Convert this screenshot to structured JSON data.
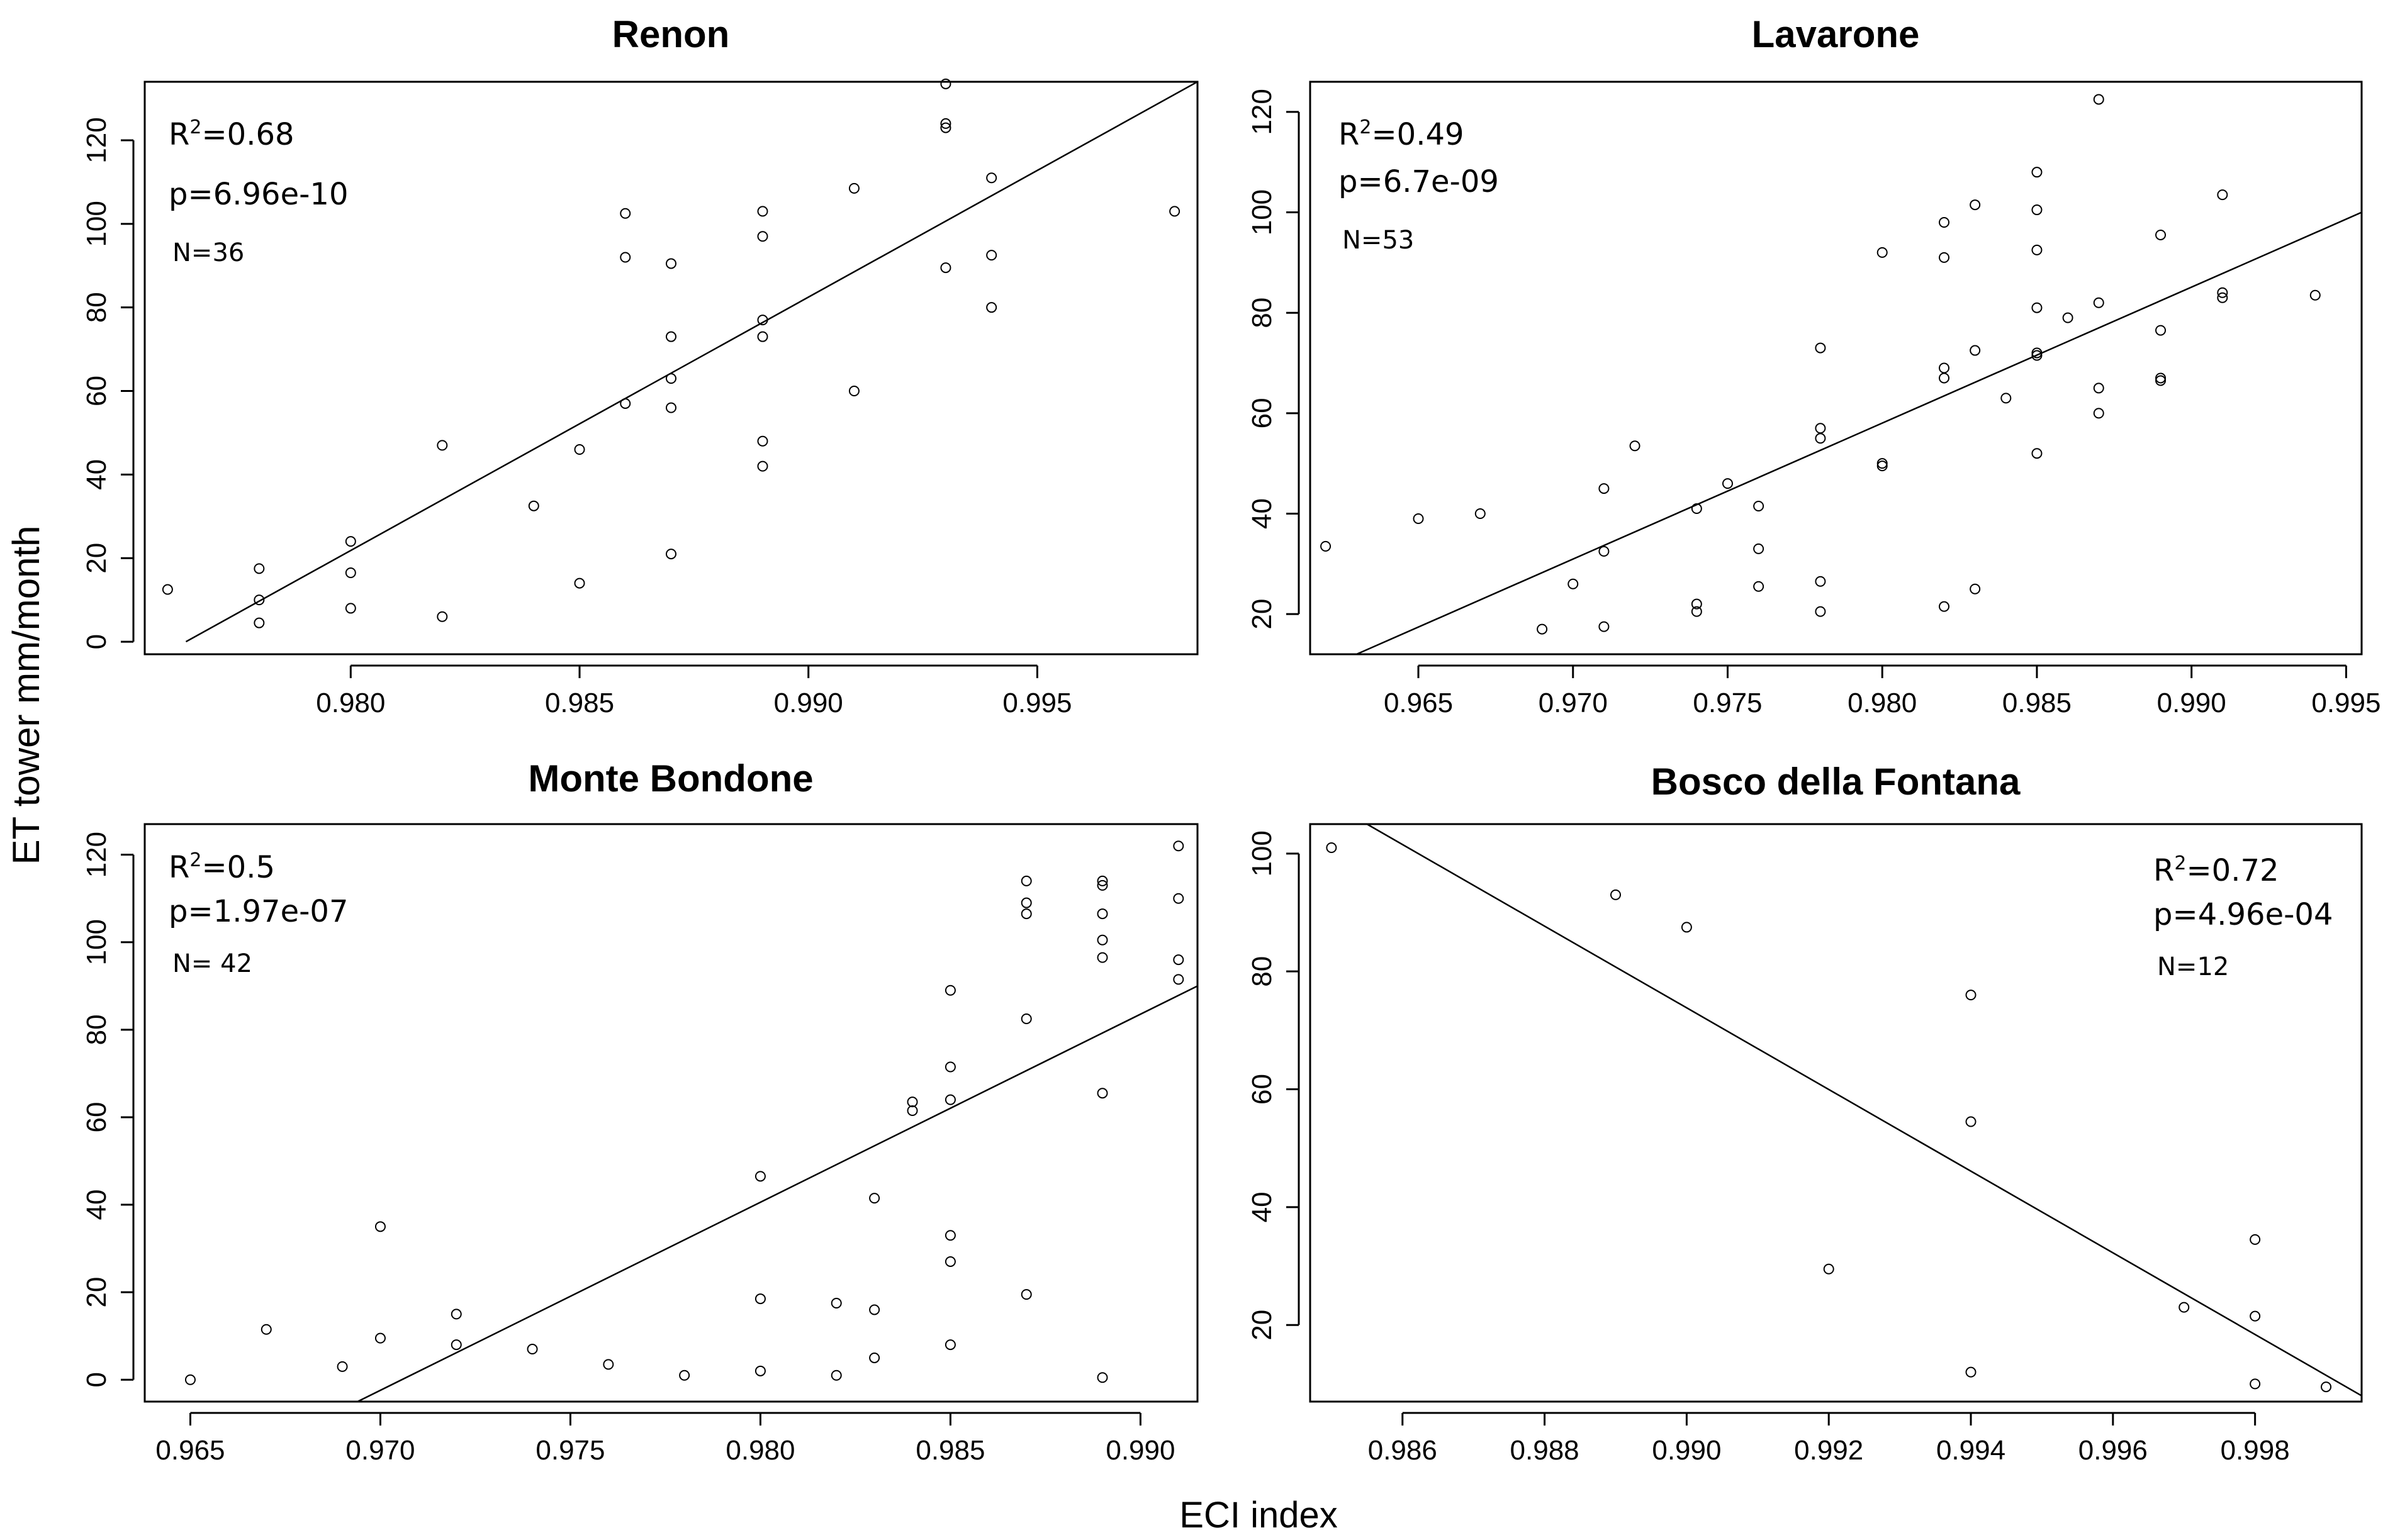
{
  "figure": {
    "ylabel": "ET tower mm/month",
    "xlabel": "ECI index"
  },
  "chart_data": [
    {
      "type": "scatter",
      "title": "Renon",
      "xlim": [
        0.9755,
        0.9985
      ],
      "ylim": [
        -3,
        134
      ],
      "xticks": [
        0.98,
        0.985,
        0.99,
        0.995
      ],
      "xtick_labels": [
        "0.980",
        "0.985",
        "0.990",
        "0.995"
      ],
      "yticks": [
        0,
        20,
        40,
        60,
        80,
        100,
        120
      ],
      "ytick_labels": [
        "0",
        "20",
        "40",
        "60",
        "80",
        "100",
        "120"
      ],
      "stats": {
        "r2_prefix": "R",
        "r2_sup": "2",
        "r2_value": "=0.68",
        "p": "p=6.96e-10",
        "n": "N=36"
      },
      "stats_position": "top-left",
      "fit_line": [
        [
          0.9764,
          0
        ],
        [
          0.9985,
          134
        ]
      ],
      "points": [
        [
          0.976,
          12.5
        ],
        [
          0.978,
          17.5
        ],
        [
          0.978,
          10
        ],
        [
          0.978,
          4.5
        ],
        [
          0.98,
          24
        ],
        [
          0.98,
          16.5
        ],
        [
          0.98,
          8
        ],
        [
          0.982,
          47
        ],
        [
          0.982,
          6
        ],
        [
          0.984,
          32.5
        ],
        [
          0.985,
          46
        ],
        [
          0.985,
          14
        ],
        [
          0.986,
          102.5
        ],
        [
          0.986,
          92
        ],
        [
          0.986,
          57
        ],
        [
          0.987,
          90.5
        ],
        [
          0.987,
          73
        ],
        [
          0.987,
          63
        ],
        [
          0.987,
          56
        ],
        [
          0.987,
          21
        ],
        [
          0.989,
          103
        ],
        [
          0.989,
          97
        ],
        [
          0.989,
          77
        ],
        [
          0.989,
          73
        ],
        [
          0.989,
          48
        ],
        [
          0.989,
          42
        ],
        [
          0.991,
          108.5
        ],
        [
          0.991,
          60
        ],
        [
          0.993,
          133.5
        ],
        [
          0.993,
          124
        ],
        [
          0.993,
          123
        ],
        [
          0.993,
          89.5
        ],
        [
          0.994,
          111
        ],
        [
          0.994,
          92.5
        ],
        [
          0.994,
          80
        ],
        [
          0.998,
          103
        ]
      ]
    },
    {
      "type": "scatter",
      "title": "Lavarone",
      "xlim": [
        0.9615,
        0.9955
      ],
      "ylim": [
        12,
        126
      ],
      "xticks": [
        0.965,
        0.97,
        0.975,
        0.98,
        0.985,
        0.99,
        0.995
      ],
      "xtick_labels": [
        "0.965",
        "0.970",
        "0.975",
        "0.980",
        "0.985",
        "0.990",
        "0.995"
      ],
      "yticks": [
        20,
        40,
        60,
        80,
        100,
        120
      ],
      "ytick_labels": [
        "20",
        "40",
        "60",
        "80",
        "100",
        "120"
      ],
      "stats": {
        "r2_prefix": "R",
        "r2_sup": "2",
        "r2_value": "=0.49",
        "p": "p=6.7e-09",
        "n": "N=53"
      },
      "stats_position": "top-left",
      "fit_line": [
        [
          0.963,
          12
        ],
        [
          0.9955,
          100
        ]
      ],
      "points": [
        [
          0.962,
          33.5
        ],
        [
          0.965,
          39
        ],
        [
          0.967,
          40
        ],
        [
          0.969,
          17
        ],
        [
          0.97,
          26
        ],
        [
          0.971,
          45
        ],
        [
          0.971,
          32.5
        ],
        [
          0.971,
          17.5
        ],
        [
          0.972,
          53.5
        ],
        [
          0.974,
          41
        ],
        [
          0.974,
          22
        ],
        [
          0.974,
          20.5
        ],
        [
          0.975,
          46
        ],
        [
          0.976,
          41.5
        ],
        [
          0.976,
          33
        ],
        [
          0.976,
          25.5
        ],
        [
          0.978,
          73
        ],
        [
          0.978,
          57
        ],
        [
          0.978,
          55
        ],
        [
          0.978,
          26.5
        ],
        [
          0.978,
          20.5
        ],
        [
          0.98,
          92
        ],
        [
          0.98,
          50
        ],
        [
          0.98,
          49.5
        ],
        [
          0.982,
          98
        ],
        [
          0.982,
          91
        ],
        [
          0.982,
          69
        ],
        [
          0.982,
          67
        ],
        [
          0.982,
          21.5
        ],
        [
          0.983,
          101.5
        ],
        [
          0.983,
          72.5
        ],
        [
          0.983,
          25
        ],
        [
          0.984,
          63
        ],
        [
          0.985,
          108
        ],
        [
          0.985,
          100.5
        ],
        [
          0.985,
          92.5
        ],
        [
          0.985,
          81
        ],
        [
          0.985,
          72
        ],
        [
          0.985,
          71.5
        ],
        [
          0.985,
          52
        ],
        [
          0.986,
          79
        ],
        [
          0.987,
          122.5
        ],
        [
          0.987,
          82
        ],
        [
          0.987,
          65
        ],
        [
          0.987,
          60
        ],
        [
          0.989,
          95.5
        ],
        [
          0.989,
          76.5
        ],
        [
          0.989,
          67
        ],
        [
          0.989,
          66.5
        ],
        [
          0.991,
          103.5
        ],
        [
          0.991,
          84
        ],
        [
          0.991,
          83
        ],
        [
          0.994,
          83.5
        ]
      ]
    },
    {
      "type": "scatter",
      "title": "Monte Bondone",
      "xlim": [
        0.9638,
        0.9915
      ],
      "ylim": [
        -5,
        127
      ],
      "xticks": [
        0.965,
        0.97,
        0.975,
        0.98,
        0.985,
        0.99
      ],
      "xtick_labels": [
        "0.965",
        "0.970",
        "0.975",
        "0.980",
        "0.985",
        "0.990"
      ],
      "yticks": [
        0,
        20,
        40,
        60,
        80,
        100,
        120
      ],
      "ytick_labels": [
        "0",
        "20",
        "40",
        "60",
        "80",
        "100",
        "120"
      ],
      "stats": {
        "r2_prefix": "R",
        "r2_sup": "2",
        "r2_value": "=0.5",
        "p": "p=1.97e-07",
        "n": "N= 42"
      },
      "stats_position": "top-left",
      "fit_line": [
        [
          0.9694,
          -5
        ],
        [
          0.9915,
          90
        ]
      ],
      "points": [
        [
          0.965,
          0
        ],
        [
          0.967,
          11.5
        ],
        [
          0.969,
          3
        ],
        [
          0.97,
          35
        ],
        [
          0.97,
          9.5
        ],
        [
          0.972,
          15
        ],
        [
          0.972,
          8
        ],
        [
          0.974,
          7
        ],
        [
          0.976,
          3.5
        ],
        [
          0.978,
          1
        ],
        [
          0.98,
          46.5
        ],
        [
          0.98,
          18.5
        ],
        [
          0.98,
          2
        ],
        [
          0.982,
          17.5
        ],
        [
          0.982,
          1
        ],
        [
          0.983,
          41.5
        ],
        [
          0.983,
          16
        ],
        [
          0.983,
          5
        ],
        [
          0.984,
          63.5
        ],
        [
          0.984,
          61.5
        ],
        [
          0.985,
          89
        ],
        [
          0.985,
          71.5
        ],
        [
          0.985,
          64
        ],
        [
          0.985,
          33
        ],
        [
          0.985,
          27
        ],
        [
          0.985,
          8
        ],
        [
          0.987,
          114
        ],
        [
          0.987,
          109
        ],
        [
          0.987,
          106.5
        ],
        [
          0.987,
          82.5
        ],
        [
          0.987,
          19.5
        ],
        [
          0.989,
          114
        ],
        [
          0.989,
          113
        ],
        [
          0.989,
          106.5
        ],
        [
          0.989,
          100.5
        ],
        [
          0.989,
          96.5
        ],
        [
          0.989,
          65.5
        ],
        [
          0.989,
          0.5
        ],
        [
          0.991,
          122
        ],
        [
          0.991,
          110
        ],
        [
          0.991,
          96
        ],
        [
          0.991,
          91.5
        ]
      ]
    },
    {
      "type": "scatter",
      "title": "Bosco della Fontana",
      "xlim": [
        0.9847,
        0.9995
      ],
      "ylim": [
        7,
        105
      ],
      "xticks": [
        0.986,
        0.988,
        0.99,
        0.992,
        0.994,
        0.996,
        0.998
      ],
      "xtick_labels": [
        "0.986",
        "0.988",
        "0.990",
        "0.992",
        "0.994",
        "0.996",
        "0.998"
      ],
      "yticks": [
        20,
        40,
        60,
        80,
        100
      ],
      "ytick_labels": [
        "20",
        "40",
        "60",
        "80",
        "100"
      ],
      "stats": {
        "r2_prefix": "R",
        "r2_sup": "2",
        "r2_value": "=0.72",
        "p": "p=4.96e-04",
        "n": "N=12"
      },
      "stats_position": "top-right",
      "fit_line": [
        [
          0.9855,
          105
        ],
        [
          0.9995,
          8
        ]
      ],
      "points": [
        [
          0.985,
          101
        ],
        [
          0.989,
          93
        ],
        [
          0.99,
          87.5
        ],
        [
          0.992,
          29.5
        ],
        [
          0.994,
          76
        ],
        [
          0.994,
          54.5
        ],
        [
          0.994,
          12
        ],
        [
          0.997,
          23
        ],
        [
          0.998,
          34.5
        ],
        [
          0.998,
          21.5
        ],
        [
          0.998,
          10
        ],
        [
          0.999,
          9.5
        ]
      ]
    }
  ]
}
